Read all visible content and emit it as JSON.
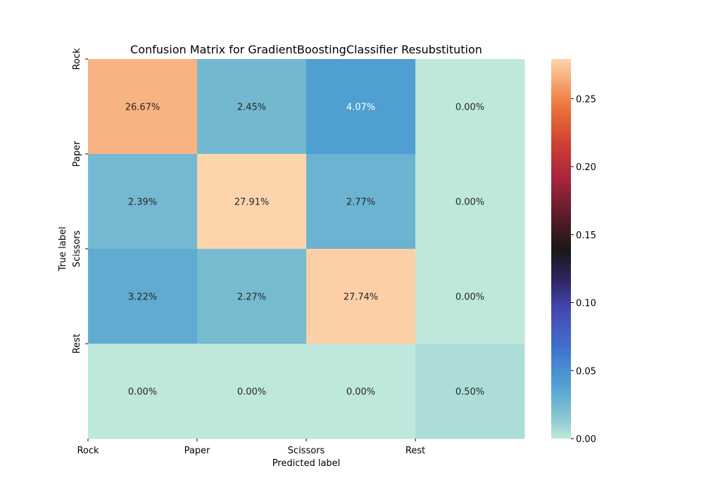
{
  "chart_data": {
    "type": "heatmap",
    "title": "Confusion Matrix for GradientBoostingClassifier Resubstitution",
    "xlabel": "Predicted label",
    "ylabel": "True label",
    "x_categories": [
      "Rock",
      "Paper",
      "Scissors",
      "Rest"
    ],
    "y_categories": [
      "Rock",
      "Paper",
      "Scissors",
      "Rest"
    ],
    "values": [
      [
        0.2667,
        0.0245,
        0.0407,
        0.0
      ],
      [
        0.0239,
        0.2791,
        0.0277,
        0.0
      ],
      [
        0.0322,
        0.0227,
        0.2774,
        0.0
      ],
      [
        0.0,
        0.0,
        0.0,
        0.005
      ]
    ],
    "cell_labels": [
      [
        "26.67%",
        "2.45%",
        "4.07%",
        "0.00%"
      ],
      [
        "2.39%",
        "27.91%",
        "2.77%",
        "0.00%"
      ],
      [
        "3.22%",
        "2.27%",
        "27.74%",
        "0.00%"
      ],
      [
        "0.00%",
        "0.00%",
        "0.00%",
        "0.50%"
      ]
    ],
    "colorbar": {
      "range": [
        0,
        0.2791
      ],
      "ticks": [
        0.0,
        0.05,
        0.1,
        0.15,
        0.2,
        0.25
      ],
      "tick_labels": [
        "0.00",
        "0.05",
        "0.10",
        "0.15",
        "0.20",
        "0.25"
      ],
      "colormap": "icefire"
    }
  }
}
